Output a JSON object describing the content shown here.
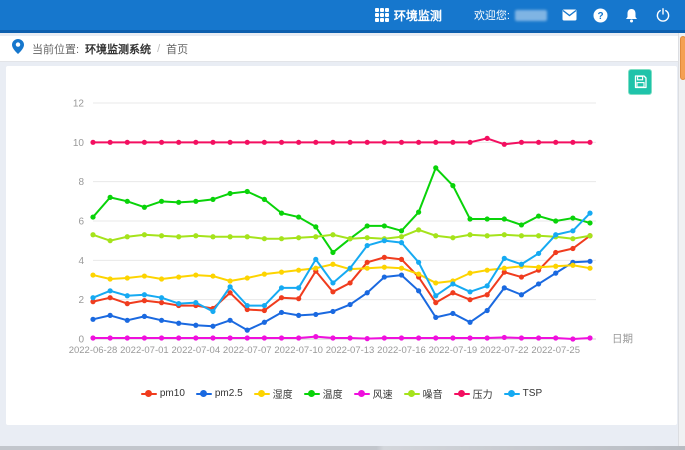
{
  "header": {
    "brand_label": "环境监测",
    "welcome_label": "欢迎您:",
    "username_masked": true,
    "icons": [
      "apps-grid-icon",
      "mail-icon",
      "help-icon",
      "bell-icon",
      "power-icon"
    ]
  },
  "breadcrumb": {
    "location_label": "当前位置:",
    "app_name": "环境监测系统",
    "separator": "/",
    "current_page": "首页"
  },
  "toolbar": {
    "save_icon": "floppy-disk-icon"
  },
  "colors": {
    "header_blue": "#1677cd",
    "header_blue_dark": "#0d5fae",
    "save_teal": "#1fc3aa",
    "scroll_thumb_orange": "#f5a052",
    "grid_line": "#e8e8e8",
    "axis_text": "#999999"
  },
  "chart_data": {
    "type": "line",
    "x": [
      "2022-06-28",
      "2022-06-29",
      "2022-06-30",
      "2022-07-01",
      "2022-07-02",
      "2022-07-03",
      "2022-07-04",
      "2022-07-05",
      "2022-07-06",
      "2022-07-07",
      "2022-07-08",
      "2022-07-09",
      "2022-07-10",
      "2022-07-11",
      "2022-07-12",
      "2022-07-13",
      "2022-07-14",
      "2022-07-15",
      "2022-07-16",
      "2022-07-17",
      "2022-07-18",
      "2022-07-19",
      "2022-07-20",
      "2022-07-21",
      "2022-07-22",
      "2022-07-23",
      "2022-07-24",
      "2022-07-25",
      "2022-07-26",
      "2022-07-27"
    ],
    "x_tick_labels": [
      "2022-06-28",
      "2022-07-01",
      "2022-07-04",
      "2022-07-07",
      "2022-07-10",
      "2022-07-13",
      "2022-07-16",
      "2022-07-19",
      "2022-07-22",
      "2022-07-25"
    ],
    "x_axis_label": "日期",
    "y_ticks": [
      0,
      2,
      4,
      6,
      8,
      10,
      12
    ],
    "ylim": [
      0,
      12
    ],
    "grid": true,
    "legend_position": "bottom",
    "series": [
      {
        "name": "pm10",
        "color": "#f03c1e",
        "values": [
          1.9,
          2.1,
          1.8,
          1.95,
          1.85,
          1.7,
          1.7,
          1.55,
          2.35,
          1.5,
          1.45,
          2.1,
          2.05,
          3.45,
          2.4,
          2.85,
          3.9,
          4.15,
          4.05,
          3.15,
          1.85,
          2.35,
          2.0,
          2.25,
          3.4,
          3.15,
          3.5,
          4.4,
          4.6,
          5.25
        ]
      },
      {
        "name": "pm2.5",
        "color": "#1a69e0",
        "values": [
          1.0,
          1.2,
          0.95,
          1.15,
          0.95,
          0.8,
          0.7,
          0.65,
          0.95,
          0.45,
          0.85,
          1.35,
          1.2,
          1.25,
          1.4,
          1.75,
          2.35,
          3.15,
          3.25,
          2.45,
          1.1,
          1.3,
          0.85,
          1.45,
          2.6,
          2.25,
          2.8,
          3.35,
          3.9,
          3.95
        ]
      },
      {
        "name": "湿度",
        "color": "#fdd400",
        "values": [
          3.25,
          3.05,
          3.1,
          3.2,
          3.05,
          3.15,
          3.25,
          3.2,
          2.95,
          3.1,
          3.3,
          3.4,
          3.5,
          3.6,
          3.8,
          3.55,
          3.6,
          3.65,
          3.6,
          3.3,
          2.85,
          2.95,
          3.35,
          3.5,
          3.6,
          3.7,
          3.65,
          3.7,
          3.75,
          3.6
        ]
      },
      {
        "name": "温度",
        "color": "#09d309",
        "values": [
          6.2,
          7.2,
          7.0,
          6.7,
          7.0,
          6.95,
          7.0,
          7.1,
          7.4,
          7.5,
          7.1,
          6.4,
          6.2,
          5.7,
          4.4,
          5.1,
          5.75,
          5.75,
          5.5,
          6.45,
          8.7,
          7.8,
          6.1,
          6.1,
          6.1,
          5.8,
          6.25,
          6.0,
          6.15,
          5.9
        ]
      },
      {
        "name": "风速",
        "color": "#ef10dd",
        "values": [
          0.05,
          0.05,
          0.05,
          0.05,
          0.05,
          0.05,
          0.05,
          0.05,
          0.05,
          0.05,
          0.05,
          0.05,
          0.05,
          0.12,
          0.05,
          0.05,
          0.02,
          0.05,
          0.05,
          0.05,
          0.05,
          0.05,
          0.05,
          0.05,
          0.08,
          0.05,
          0.05,
          0.05,
          0.0,
          0.05
        ]
      },
      {
        "name": "噪音",
        "color": "#a5e31b",
        "values": [
          5.3,
          5.0,
          5.2,
          5.3,
          5.25,
          5.2,
          5.25,
          5.2,
          5.2,
          5.2,
          5.1,
          5.1,
          5.15,
          5.2,
          5.3,
          5.1,
          5.15,
          5.1,
          5.2,
          5.55,
          5.25,
          5.15,
          5.3,
          5.25,
          5.3,
          5.25,
          5.25,
          5.2,
          5.1,
          5.25
        ]
      },
      {
        "name": "压力",
        "color": "#f30f60",
        "values": [
          10,
          10,
          10,
          10,
          10,
          10,
          10,
          10,
          10,
          10,
          10,
          10,
          10,
          10,
          10,
          10,
          10,
          10,
          10,
          10,
          10,
          10,
          10,
          10.2,
          9.9,
          10,
          10,
          10,
          10,
          10
        ]
      },
      {
        "name": "TSP",
        "color": "#16aaf2",
        "values": [
          2.1,
          2.45,
          2.2,
          2.25,
          2.1,
          1.8,
          1.85,
          1.4,
          2.65,
          1.7,
          1.7,
          2.6,
          2.6,
          4.05,
          2.85,
          3.6,
          4.75,
          5.0,
          4.9,
          3.9,
          2.2,
          2.8,
          2.4,
          2.7,
          4.1,
          3.8,
          4.35,
          5.3,
          5.5,
          6.4
        ]
      }
    ]
  }
}
